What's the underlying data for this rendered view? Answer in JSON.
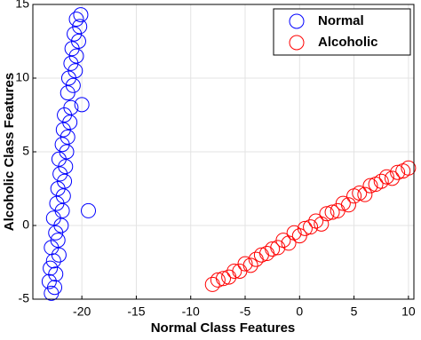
{
  "chart_data": {
    "type": "scatter",
    "xlabel": "Normal Class Features",
    "ylabel": "Alcoholic Class Features",
    "xlim": [
      -24.5,
      10.5
    ],
    "ylim": [
      -5,
      15
    ],
    "xticks": [
      -20,
      -15,
      -10,
      -5,
      0,
      5,
      10
    ],
    "yticks": [
      -5,
      0,
      5,
      10,
      15
    ],
    "grid": true,
    "legend": "upper right",
    "series": [
      {
        "name": "Normal",
        "color": "#0000ff",
        "x": [
          -22.8,
          -22.5,
          -23.0,
          -22.4,
          -22.9,
          -22.6,
          -22.1,
          -22.8,
          -22.2,
          -22.4,
          -21.9,
          -22.6,
          -21.8,
          -22.3,
          -21.7,
          -22.2,
          -21.6,
          -22.0,
          -21.5,
          -22.1,
          -21.4,
          -21.8,
          -21.3,
          -21.7,
          -21.1,
          -21.6,
          -21.0,
          -20.0,
          -21.3,
          -20.8,
          -21.2,
          -20.6,
          -21.0,
          -20.5,
          -20.9,
          -20.3,
          -20.7,
          -20.2,
          -20.5,
          -20.1,
          -19.4
        ],
        "values": [
          -4.6,
          -4.2,
          -3.8,
          -3.3,
          -2.9,
          -2.4,
          -2.0,
          -1.5,
          -1.0,
          -0.5,
          0.0,
          0.5,
          1.0,
          1.5,
          2.0,
          2.5,
          3.0,
          3.5,
          4.0,
          4.5,
          5.0,
          5.5,
          6.0,
          6.5,
          7.0,
          7.5,
          8.0,
          8.2,
          9.0,
          9.5,
          10.0,
          10.5,
          11.0,
          11.5,
          12.0,
          12.5,
          13.0,
          13.5,
          14.0,
          14.3,
          1.0
        ]
      },
      {
        "name": "Alcoholic",
        "color": "#ff0000",
        "x": [
          -8,
          -7.5,
          -7,
          -6.5,
          -6,
          -5.5,
          -5,
          -4.5,
          -4,
          -3.5,
          -3,
          -2.5,
          -2,
          -1.5,
          -1,
          -0.5,
          0,
          0.5,
          1,
          1.5,
          2,
          2.5,
          3,
          3.5,
          4,
          4.5,
          5,
          5.5,
          6,
          6.5,
          7,
          7.5,
          8,
          8.5,
          9,
          9.5,
          10
        ],
        "values": [
          -4.0,
          -3.7,
          -3.6,
          -3.5,
          -3.1,
          -3.1,
          -2.6,
          -2.7,
          -2.3,
          -2.0,
          -1.9,
          -1.6,
          -1.5,
          -1.0,
          -1.2,
          -0.5,
          -0.7,
          -0.2,
          -0.1,
          0.3,
          0.1,
          0.8,
          0.9,
          1.0,
          1.5,
          1.4,
          2.0,
          2.2,
          2.1,
          2.7,
          2.8,
          3.0,
          3.3,
          3.2,
          3.6,
          3.7,
          3.9
        ]
      }
    ]
  }
}
